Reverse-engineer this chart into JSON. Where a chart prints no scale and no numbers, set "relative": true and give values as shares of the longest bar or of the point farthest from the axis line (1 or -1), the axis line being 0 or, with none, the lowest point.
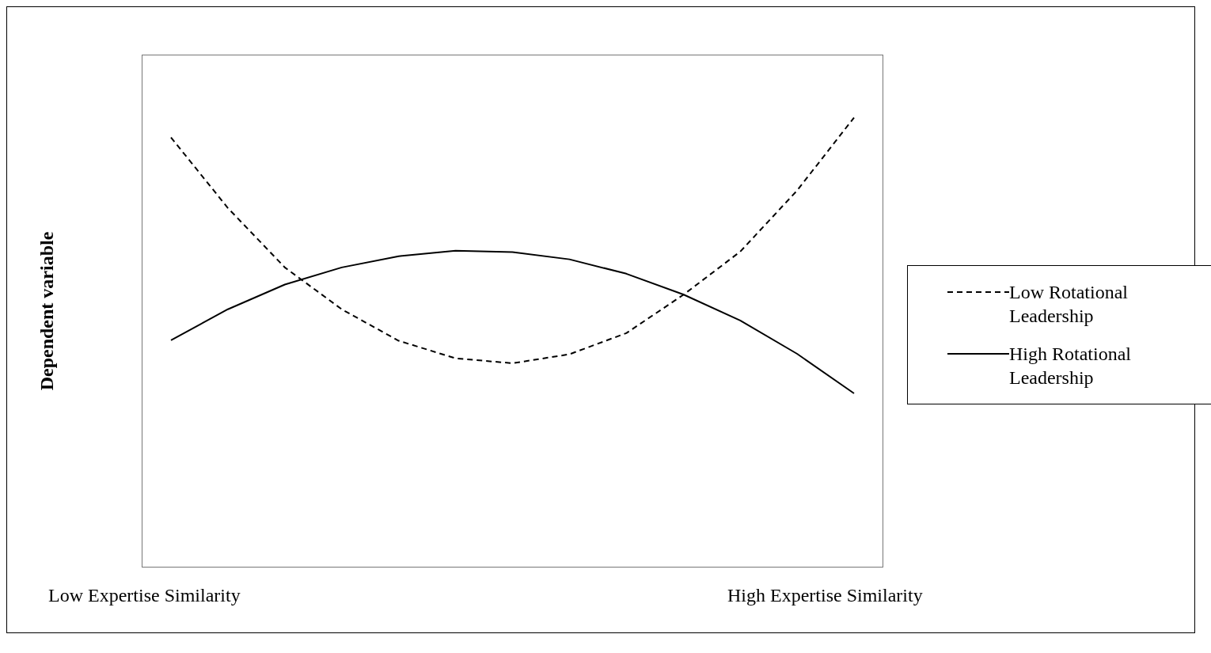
{
  "chart_data": {
    "type": "line",
    "relative": true,
    "ylabel": "Dependent variable",
    "annotations": [
      "Low Expertise Similarity",
      "High Expertise Similarity"
    ],
    "categories": [
      null,
      null,
      null,
      null,
      null,
      null,
      null,
      null,
      null,
      null,
      null,
      null,
      null
    ],
    "series": [
      {
        "name": "Low Rotational Leadership",
        "color": "#000000",
        "line_style": "dashed",
        "values": [
          0.956,
          0.799,
          0.667,
          0.574,
          0.504,
          0.465,
          0.454,
          0.474,
          0.521,
          0.606,
          0.702,
          0.838,
          1
        ]
      },
      {
        "name": "High Rotational Leadership",
        "color": "#000000",
        "line_style": "solid",
        "values": [
          0.505,
          0.574,
          0.629,
          0.667,
          0.692,
          0.704,
          0.701,
          0.685,
          0.653,
          0.607,
          0.549,
          0.475,
          0.387
        ]
      }
    ],
    "legend": "right",
    "marker": "none",
    "grid": false
  }
}
